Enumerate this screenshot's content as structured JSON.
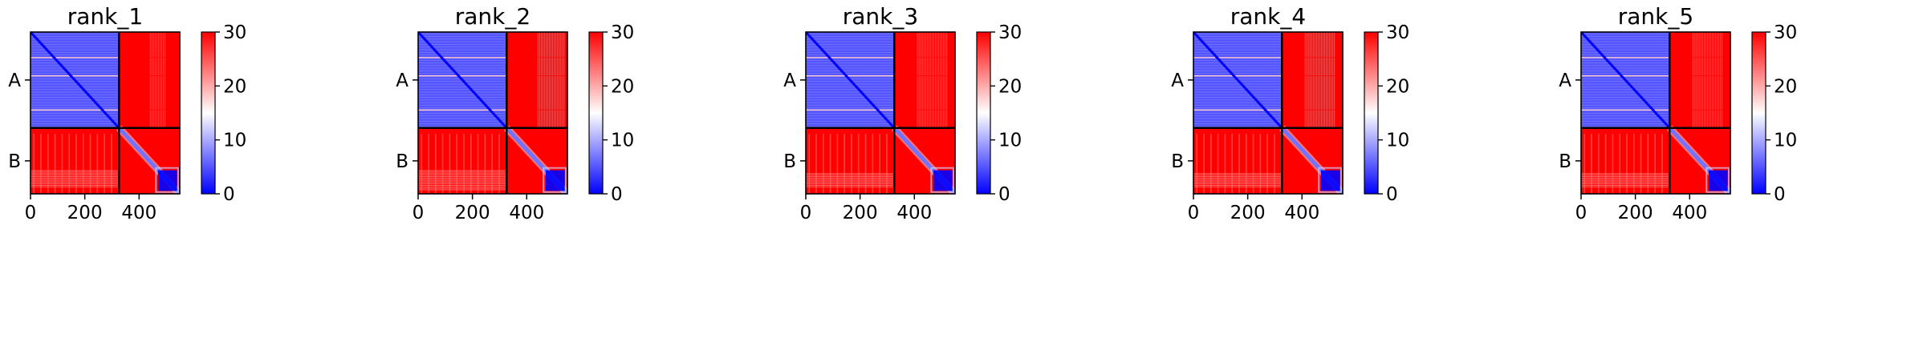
{
  "colormap": {
    "name": "bwr",
    "low_color": "#0000ff",
    "mid_color": "#ffffff",
    "high_color": "#ff0000",
    "min": 0,
    "max": 30
  },
  "chart_data": [
    {
      "type": "heatmap",
      "title": "rank_1",
      "matrix_size": 550,
      "chain_boundary": 326,
      "x_ticks": [
        0,
        200,
        400
      ],
      "y_tick_labels": [
        "A",
        "B"
      ],
      "y_tick_positions": [
        163,
        438
      ],
      "colorbar_ticks": [
        0,
        10,
        20,
        30
      ],
      "blocks": {
        "AA": 5,
        "AB": 30,
        "BA": 30,
        "BB": 30,
        "B_domain": 0
      },
      "B_domain_range": [
        470,
        550
      ],
      "AB_light_band_range": [
        440,
        500
      ],
      "BA_light_band_range": [
        470,
        530
      ],
      "A_stripes": [
        85,
        147,
        263
      ]
    },
    {
      "type": "heatmap",
      "title": "rank_2",
      "matrix_size": 550,
      "chain_boundary": 326,
      "x_ticks": [
        0,
        200,
        400
      ],
      "y_tick_labels": [
        "A",
        "B"
      ],
      "y_tick_positions": [
        163,
        438
      ],
      "colorbar_ticks": [
        0,
        10,
        20,
        30
      ],
      "blocks": {
        "AA": 5,
        "AB": 30,
        "BA": 30,
        "BB": 30,
        "B_domain": 0
      },
      "B_domain_range": [
        470,
        550
      ],
      "AB_light_band_range": [
        440,
        540
      ],
      "BA_light_band_range": [
        470,
        540
      ],
      "A_stripes": [
        85,
        147,
        263
      ]
    },
    {
      "type": "heatmap",
      "title": "rank_3",
      "matrix_size": 550,
      "chain_boundary": 326,
      "x_ticks": [
        0,
        200,
        400
      ],
      "y_tick_labels": [
        "A",
        "B"
      ],
      "y_tick_positions": [
        163,
        438
      ],
      "colorbar_ticks": [
        0,
        10,
        20,
        30
      ],
      "blocks": {
        "AA": 5,
        "AB": 30,
        "BA": 30,
        "BB": 30,
        "B_domain": 0
      },
      "B_domain_range": [
        470,
        550
      ],
      "AB_light_band_range": [
        410,
        520
      ],
      "BA_light_band_range": [
        480,
        530
      ],
      "A_stripes": [
        85,
        147,
        263
      ]
    },
    {
      "type": "heatmap",
      "title": "rank_4",
      "matrix_size": 550,
      "chain_boundary": 326,
      "x_ticks": [
        0,
        200,
        400
      ],
      "y_tick_labels": [
        "A",
        "B"
      ],
      "y_tick_positions": [
        163,
        438
      ],
      "colorbar_ticks": [
        0,
        10,
        20,
        30
      ],
      "blocks": {
        "AA": 5,
        "AB": 30,
        "BA": 30,
        "BB": 30,
        "B_domain": 0
      },
      "B_domain_range": [
        470,
        550
      ],
      "AB_light_band_range": [
        410,
        520
      ],
      "BA_light_band_range": [
        480,
        530
      ],
      "A_stripes": [
        85,
        147,
        263
      ]
    },
    {
      "type": "heatmap",
      "title": "rank_5",
      "matrix_size": 550,
      "chain_boundary": 326,
      "x_ticks": [
        0,
        200,
        400
      ],
      "y_tick_labels": [
        "A",
        "B"
      ],
      "y_tick_positions": [
        163,
        438
      ],
      "colorbar_ticks": [
        0,
        10,
        20,
        30
      ],
      "blocks": {
        "AA": 5,
        "AB": 30,
        "BA": 30,
        "BB": 30,
        "B_domain": 0
      },
      "B_domain_range": [
        470,
        550
      ],
      "AB_light_band_range": [
        410,
        520
      ],
      "BA_light_band_range": [
        480,
        530
      ],
      "A_stripes": [
        85,
        147,
        263
      ]
    }
  ]
}
